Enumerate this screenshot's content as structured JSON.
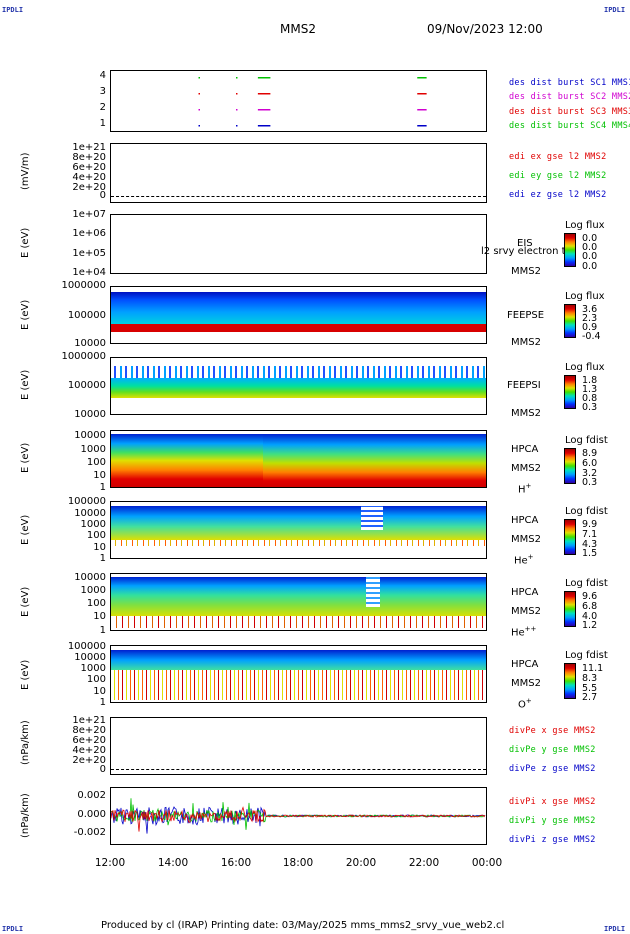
{
  "corner_tl": "IPDLI",
  "corner_tr": "IPDLI",
  "corner_bl": "IPDLI",
  "corner_br": "IPDLI",
  "header": {
    "spacecraft": "MMS2",
    "date": "09/Nov/2023 12:00"
  },
  "footer": "Produced by cl (IRAP)   Printing date: 03/May/2025   mms_mms2_srvy_vue_web2.cl",
  "colors": {
    "mms1": "#0000c8",
    "mms2": "#d000d0",
    "mms3": "#e00000",
    "mms4": "#00c000",
    "x": "#e00000",
    "y": "#00c000",
    "z": "#0000c8"
  },
  "chart_data": [
    {
      "type": "scatter",
      "panel": "burst",
      "yticks": [
        "4",
        "3",
        "2",
        "1"
      ],
      "legend": [
        "des dist burst SC1 MMS1",
        "des dist burst SC2 MMS2",
        "des dist burst SC3 MMS3",
        "des dist burst SC4 MMS4"
      ],
      "series": [
        {
          "sc": 4,
          "intervals_hours": [
            [
              14.8,
              14.82
            ],
            [
              16.0,
              16.02
            ],
            [
              16.7,
              17.1
            ],
            [
              21.8,
              22.1
            ]
          ]
        },
        {
          "sc": 3,
          "intervals_hours": [
            [
              14.8,
              14.82
            ],
            [
              16.0,
              16.02
            ],
            [
              16.7,
              17.1
            ],
            [
              21.8,
              22.1
            ]
          ]
        },
        {
          "sc": 2,
          "intervals_hours": [
            [
              14.8,
              14.82
            ],
            [
              16.0,
              16.02
            ],
            [
              16.7,
              17.1
            ],
            [
              21.8,
              22.1
            ]
          ]
        },
        {
          "sc": 1,
          "intervals_hours": [
            [
              14.8,
              14.82
            ],
            [
              16.0,
              16.02
            ],
            [
              16.7,
              17.1
            ],
            [
              21.8,
              22.1
            ]
          ]
        }
      ]
    },
    {
      "type": "line",
      "panel": "edi",
      "ylabel": "(mV/m)",
      "yticks": [
        "1e+21",
        "8e+20",
        "6e+20",
        "4e+20",
        "2e+20",
        "0"
      ],
      "legend": [
        "edi ex gse l2 MMS2",
        "edi ey gse l2 MMS2",
        "edi ez gse l2 MMS2"
      ]
    },
    {
      "type": "heatmap",
      "panel": "eis",
      "ylabel": "E (eV)",
      "yticks": [
        "1e+07",
        "1e+06",
        "1e+05",
        "1e+04"
      ],
      "labels": [
        "EIS",
        "MMS2"
      ],
      "overlay_text": "l2 srvy electron to",
      "colorbar_title": "Log flux",
      "colorbar_ticks": [
        "0.0",
        "0.0",
        "0.0",
        "0.0"
      ]
    },
    {
      "type": "heatmap",
      "panel": "feeps_e",
      "ylabel": "E (eV)",
      "yticks": [
        "1000000",
        "100000",
        "10000"
      ],
      "labels": [
        "FEEPSE",
        "MMS2"
      ],
      "colorbar_title": "Log flux",
      "colorbar_ticks": [
        "3.6",
        "2.3",
        "0.9",
        "-0.4"
      ]
    },
    {
      "type": "heatmap",
      "panel": "feeps_i",
      "ylabel": "E (eV)",
      "yticks": [
        "1000000",
        "100000",
        "10000"
      ],
      "labels": [
        "FEEPSI",
        "MMS2"
      ],
      "colorbar_title": "Log flux",
      "colorbar_ticks": [
        "1.8",
        "1.3",
        "0.8",
        "0.3"
      ]
    },
    {
      "type": "heatmap",
      "panel": "hpca_h",
      "ylabel": "E (eV)",
      "yticks": [
        "10000",
        "1000",
        "100",
        "10",
        "1"
      ],
      "labels": [
        "HPCA",
        "MMS2",
        "H",
        "+"
      ],
      "colorbar_title": "Log fdist",
      "colorbar_ticks": [
        "8.9",
        "6.0",
        "3.2",
        "0.3"
      ]
    },
    {
      "type": "heatmap",
      "panel": "hpca_he",
      "ylabel": "E (eV)",
      "yticks": [
        "100000",
        "10000",
        "1000",
        "100",
        "10",
        "1"
      ],
      "labels": [
        "HPCA",
        "MMS2",
        "He",
        "+"
      ],
      "colorbar_title": "Log fdist",
      "colorbar_ticks": [
        "9.9",
        "7.1",
        "4.3",
        "1.5"
      ]
    },
    {
      "type": "heatmap",
      "panel": "hpca_hepp",
      "ylabel": "E (eV)",
      "yticks": [
        "10000",
        "1000",
        "100",
        "10",
        "1"
      ],
      "labels": [
        "HPCA",
        "MMS2",
        "He",
        "++"
      ],
      "colorbar_title": "Log fdist",
      "colorbar_ticks": [
        "9.6",
        "6.8",
        "4.0",
        "1.2"
      ]
    },
    {
      "type": "heatmap",
      "panel": "hpca_o",
      "ylabel": "E (eV)",
      "yticks": [
        "100000",
        "10000",
        "1000",
        "100",
        "10",
        "1"
      ],
      "labels": [
        "HPCA",
        "MMS2",
        "O",
        "+"
      ],
      "colorbar_title": "Log fdist",
      "colorbar_ticks": [
        "11.1",
        "8.3",
        "5.5",
        "2.7"
      ]
    },
    {
      "type": "line",
      "panel": "divpe",
      "ylabel": "(nPa/km)",
      "yticks": [
        "1e+21",
        "8e+20",
        "6e+20",
        "4e+20",
        "2e+20",
        "0"
      ],
      "legend": [
        "divPe x gse MMS2",
        "divPe y gse MMS2",
        "divPe z gse MMS2"
      ]
    },
    {
      "type": "line",
      "panel": "divpi",
      "ylabel": "(nPa/km)",
      "yticks": [
        "0.002",
        "0.000",
        "-0.002"
      ],
      "ylim": [
        -0.003,
        0.003
      ],
      "legend": [
        "divPi x gse MMS2",
        "divPi y gse MMS2",
        "divPi z gse MMS2"
      ]
    }
  ],
  "xaxis": {
    "ticks": [
      "12:00",
      "14:00",
      "16:00",
      "18:00",
      "20:00",
      "22:00",
      "00:00"
    ],
    "range_hours": [
      12,
      24
    ]
  }
}
